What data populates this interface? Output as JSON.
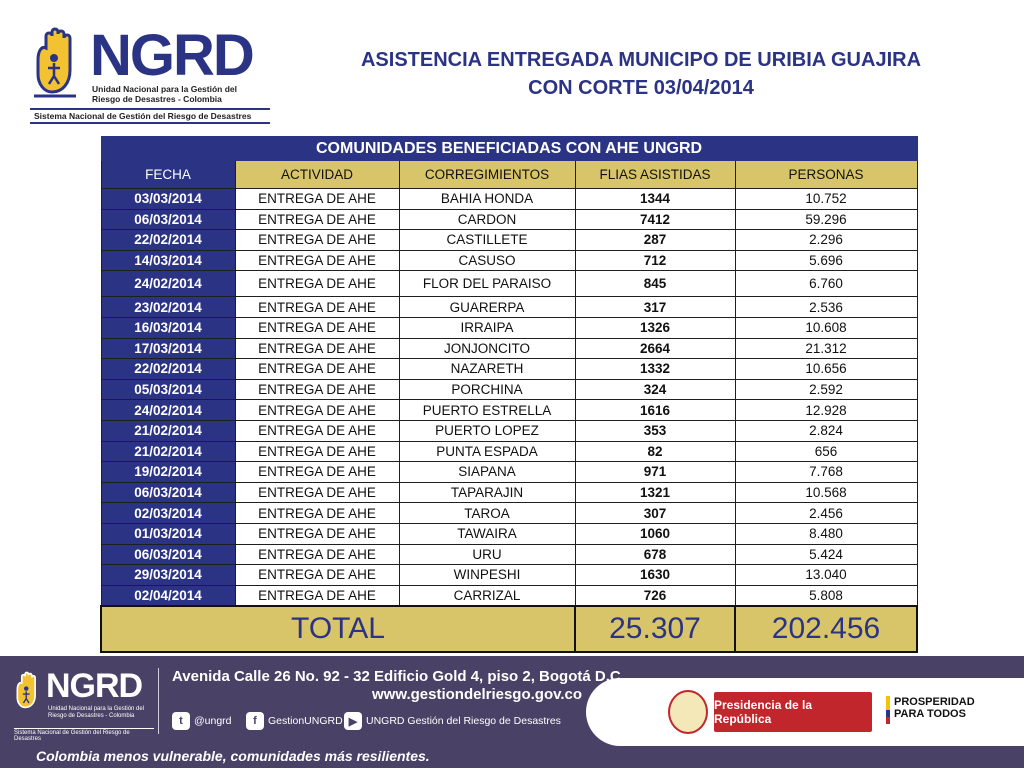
{
  "header": {
    "logo": {
      "word": "NGRD",
      "subtitle_line1": "Unidad Nacional para la Gestión del",
      "subtitle_line2": "Riesgo de Desastres - Colombia",
      "system": "Sistema Nacional de Gestión del Riesgo de Desastres"
    },
    "title_line1": "ASISTENCIA ENTREGADA MUNICIPO DE URIBIA GUAJIRA",
    "title_line2": "CON CORTE 03/04/2014"
  },
  "table": {
    "banner": "COMUNIDADES BENEFICIADAS CON AHE UNGRD",
    "columns": [
      "FECHA",
      "ACTIVIDAD",
      "CORREGIMIENTOS",
      "FLIAS ASISTIDAS",
      "PERSONAS"
    ],
    "rows": [
      [
        "03/03/2014",
        "ENTREGA DE AHE",
        "BAHIA HONDA",
        "1344",
        "10.752"
      ],
      [
        "06/03/2014",
        "ENTREGA DE AHE",
        "CARDON",
        "7412",
        "59.296"
      ],
      [
        "22/02/2014",
        "ENTREGA DE AHE",
        "CASTILLETE",
        "287",
        "2.296"
      ],
      [
        "14/03/2014",
        "ENTREGA DE AHE",
        "CASUSO",
        "712",
        "5.696"
      ],
      [
        "24/02/2014",
        "ENTREGA DE AHE",
        "FLOR DEL PARAISO",
        "845",
        "6.760"
      ],
      [
        "23/02/2014",
        "ENTREGA DE AHE",
        "GUARERPA",
        "317",
        "2.536"
      ],
      [
        "16/03/2014",
        "ENTREGA DE AHE",
        "IRRAIPA",
        "1326",
        "10.608"
      ],
      [
        "17/03/2014",
        "ENTREGA DE AHE",
        "JONJONCITO",
        "2664",
        "21.312"
      ],
      [
        "22/02/2014",
        "ENTREGA DE AHE",
        "NAZARETH",
        "1332",
        "10.656"
      ],
      [
        "05/03/2014",
        "ENTREGA DE AHE",
        "PORCHINA",
        "324",
        "2.592"
      ],
      [
        "24/02/2014",
        "ENTREGA DE AHE",
        "PUERTO ESTRELLA",
        "1616",
        "12.928"
      ],
      [
        "21/02/2014",
        "ENTREGA DE AHE",
        "PUERTO LOPEZ",
        "353",
        "2.824"
      ],
      [
        "21/02/2014",
        "ENTREGA DE AHE",
        "PUNTA ESPADA",
        "82",
        "656"
      ],
      [
        "19/02/2014",
        "ENTREGA DE AHE",
        "SIAPANA",
        "971",
        "7.768"
      ],
      [
        "06/03/2014",
        "ENTREGA DE AHE",
        "TAPARAJIN",
        "1321",
        "10.568"
      ],
      [
        "02/03/2014",
        "ENTREGA DE AHE",
        "TAROA",
        "307",
        "2.456"
      ],
      [
        "01/03/2014",
        "ENTREGA DE AHE",
        "TAWAIRA",
        "1060",
        "8.480"
      ],
      [
        "06/03/2014",
        "ENTREGA DE AHE",
        "URU",
        "678",
        "5.424"
      ],
      [
        "29/03/2014",
        "ENTREGA DE AHE",
        "WINPESHI",
        "1630",
        "13.040"
      ],
      [
        "02/04/2014",
        "ENTREGA DE AHE",
        "CARRIZAL",
        "726",
        "5.808"
      ]
    ],
    "total_label": "TOTAL",
    "total_families": "25.307",
    "total_persons": "202.456"
  },
  "footer": {
    "logo": {
      "word": "NGRD",
      "subtitle_line1": "Unidad Nacional para la Gestión del",
      "subtitle_line2": "Riesgo de Desastres - Colombia",
      "system": "Sistema Nacional de Gestión del Riesgo de Desastres"
    },
    "address": "Avenida Calle 26 No. 92 - 32 Edificio Gold 4, piso 2, Bogotá D.C",
    "website": "www.gestiondelriesgo.gov.co",
    "social": {
      "twitter": "@ungrd",
      "facebook": "GestionUNGRD",
      "youtube": "UNGRD Gestión del Riesgo de Desastres"
    },
    "presidencia": "Presidencia de la República",
    "prosperidad_line1": "PROSPERIDAD",
    "prosperidad_line2": "PARA TODOS",
    "slogan": "Colombia menos vulnerable, comunidades más resilientes."
  },
  "colors": {
    "navy": "#2b3385",
    "gold": "#d8c56a",
    "footer_bg": "#4a4166",
    "red": "#c0262c"
  }
}
